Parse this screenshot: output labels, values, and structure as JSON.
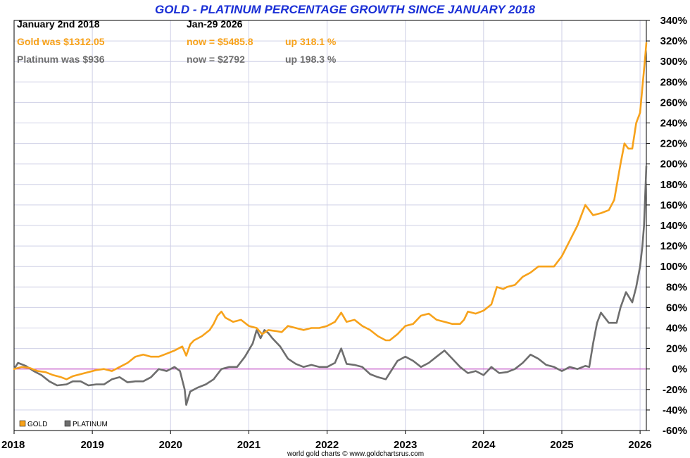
{
  "chart_data": {
    "type": "line",
    "title": "GOLD - PLATINUM PERCENTAGE GROWTH SINCE JANUARY 2018",
    "info": {
      "start_label": "January 2nd 2018",
      "end_label": "Jan-29  2026",
      "gold_was": "Gold was $1312.05",
      "gold_now": "now = $5485.8",
      "gold_up": "up 318.1 %",
      "plat_was": "Platinum was $936",
      "plat_now": "now = $2792",
      "plat_up": "up 198.3 %"
    },
    "xlim": [
      2018,
      2026.08
    ],
    "ylim": [
      -60,
      340
    ],
    "ytick_values": [
      -60,
      -40,
      -20,
      0,
      20,
      40,
      60,
      80,
      100,
      120,
      140,
      160,
      180,
      200,
      220,
      240,
      260,
      280,
      300,
      320,
      340
    ],
    "ytick_labels": [
      "-60%",
      "-40%",
      "-20%",
      "0%",
      "20%",
      "40%",
      "60%",
      "80%",
      "100%",
      "120%",
      "140%",
      "160%",
      "180%",
      "200%",
      "220%",
      "240%",
      "260%",
      "280%",
      "300%",
      "320%",
      "340%"
    ],
    "xtick_values": [
      2018,
      2019,
      2020,
      2021,
      2022,
      2023,
      2024,
      2025,
      2026
    ],
    "xtick_labels": [
      "2018",
      "2019",
      "2020",
      "2021",
      "2022",
      "2023",
      "2024",
      "2025",
      "2026"
    ],
    "grid": true,
    "legend_position": "bottom-left",
    "credit": "world gold charts © www.goldchartsrus.com",
    "series": [
      {
        "name": "GOLD",
        "color": "#f7a21b",
        "x": [
          2018.0,
          2018.1,
          2018.2,
          2018.3,
          2018.4,
          2018.5,
          2018.6,
          2018.67,
          2018.75,
          2018.85,
          2018.95,
          2019.05,
          2019.15,
          2019.25,
          2019.35,
          2019.45,
          2019.55,
          2019.65,
          2019.75,
          2019.85,
          2019.95,
          2020.05,
          2020.15,
          2020.2,
          2020.25,
          2020.3,
          2020.4,
          2020.5,
          2020.55,
          2020.6,
          2020.65,
          2020.7,
          2020.8,
          2020.9,
          2021.0,
          2021.1,
          2021.17,
          2021.25,
          2021.35,
          2021.42,
          2021.5,
          2021.6,
          2021.7,
          2021.8,
          2021.9,
          2022.0,
          2022.1,
          2022.18,
          2022.25,
          2022.35,
          2022.45,
          2022.55,
          2022.65,
          2022.75,
          2022.8,
          2022.9,
          2023.0,
          2023.1,
          2023.2,
          2023.3,
          2023.4,
          2023.5,
          2023.6,
          2023.7,
          2023.75,
          2023.8,
          2023.9,
          2024.0,
          2024.1,
          2024.17,
          2024.25,
          2024.3,
          2024.4,
          2024.5,
          2024.6,
          2024.7,
          2024.8,
          2024.9,
          2025.0,
          2025.1,
          2025.2,
          2025.3,
          2025.35,
          2025.4,
          2025.5,
          2025.6,
          2025.67,
          2025.75,
          2025.8,
          2025.85,
          2025.9,
          2025.95,
          2026.0,
          2026.03,
          2026.06,
          2026.08
        ],
        "y": [
          0,
          2,
          1,
          -2,
          -3,
          -6,
          -8,
          -10,
          -7,
          -5,
          -3,
          -1,
          0,
          -2,
          2,
          6,
          12,
          14,
          12,
          12,
          15,
          18,
          22,
          13,
          24,
          28,
          32,
          38,
          44,
          52,
          56,
          50,
          46,
          48,
          42,
          40,
          34,
          38,
          37,
          36,
          42,
          40,
          38,
          40,
          40,
          42,
          46,
          55,
          46,
          48,
          42,
          38,
          32,
          28,
          28,
          34,
          42,
          44,
          52,
          54,
          48,
          46,
          44,
          44,
          48,
          56,
          54,
          57,
          63,
          80,
          78,
          80,
          82,
          90,
          94,
          100,
          100,
          100,
          110,
          125,
          140,
          160,
          155,
          150,
          152,
          155,
          165,
          200,
          220,
          215,
          215,
          240,
          250,
          275,
          300,
          318
        ]
      },
      {
        "name": "PLATINUM",
        "color": "#6e6e6e",
        "x": [
          2018.0,
          2018.05,
          2018.15,
          2018.25,
          2018.35,
          2018.45,
          2018.55,
          2018.67,
          2018.75,
          2018.85,
          2018.95,
          2019.05,
          2019.15,
          2019.25,
          2019.35,
          2019.45,
          2019.55,
          2019.65,
          2019.75,
          2019.85,
          2019.95,
          2020.05,
          2020.12,
          2020.18,
          2020.2,
          2020.25,
          2020.35,
          2020.45,
          2020.55,
          2020.65,
          2020.75,
          2020.85,
          2020.95,
          2021.05,
          2021.1,
          2021.15,
          2021.2,
          2021.25,
          2021.3,
          2021.4,
          2021.5,
          2021.6,
          2021.7,
          2021.8,
          2021.9,
          2022.0,
          2022.1,
          2022.18,
          2022.25,
          2022.35,
          2022.45,
          2022.55,
          2022.65,
          2022.75,
          2022.8,
          2022.9,
          2023.0,
          2023.1,
          2023.2,
          2023.3,
          2023.4,
          2023.5,
          2023.6,
          2023.7,
          2023.8,
          2023.9,
          2024.0,
          2024.1,
          2024.2,
          2024.3,
          2024.4,
          2024.5,
          2024.6,
          2024.7,
          2024.8,
          2024.9,
          2025.0,
          2025.1,
          2025.2,
          2025.3,
          2025.35,
          2025.4,
          2025.45,
          2025.5,
          2025.6,
          2025.7,
          2025.75,
          2025.82,
          2025.9,
          2025.95,
          2026.0,
          2026.03,
          2026.05,
          2026.08
        ],
        "y": [
          0,
          6,
          3,
          -2,
          -6,
          -12,
          -16,
          -15,
          -12,
          -12,
          -16,
          -15,
          -15,
          -10,
          -8,
          -13,
          -12,
          -12,
          -8,
          0,
          -2,
          2,
          -2,
          -20,
          -35,
          -22,
          -18,
          -15,
          -10,
          0,
          2,
          2,
          12,
          25,
          38,
          30,
          38,
          35,
          30,
          22,
          10,
          5,
          2,
          4,
          2,
          2,
          6,
          20,
          5,
          4,
          2,
          -5,
          -8,
          -10,
          -4,
          8,
          12,
          8,
          2,
          6,
          12,
          18,
          10,
          2,
          -4,
          -2,
          -6,
          2,
          -4,
          -3,
          0,
          6,
          14,
          10,
          4,
          2,
          -2,
          2,
          0,
          3,
          2,
          25,
          45,
          55,
          45,
          45,
          60,
          75,
          65,
          80,
          100,
          120,
          140,
          198
        ]
      }
    ],
    "legend": [
      {
        "name": "GOLD",
        "color": "#f7a21b"
      },
      {
        "name": "PLATINUM",
        "color": "#6e6e6e"
      }
    ]
  }
}
